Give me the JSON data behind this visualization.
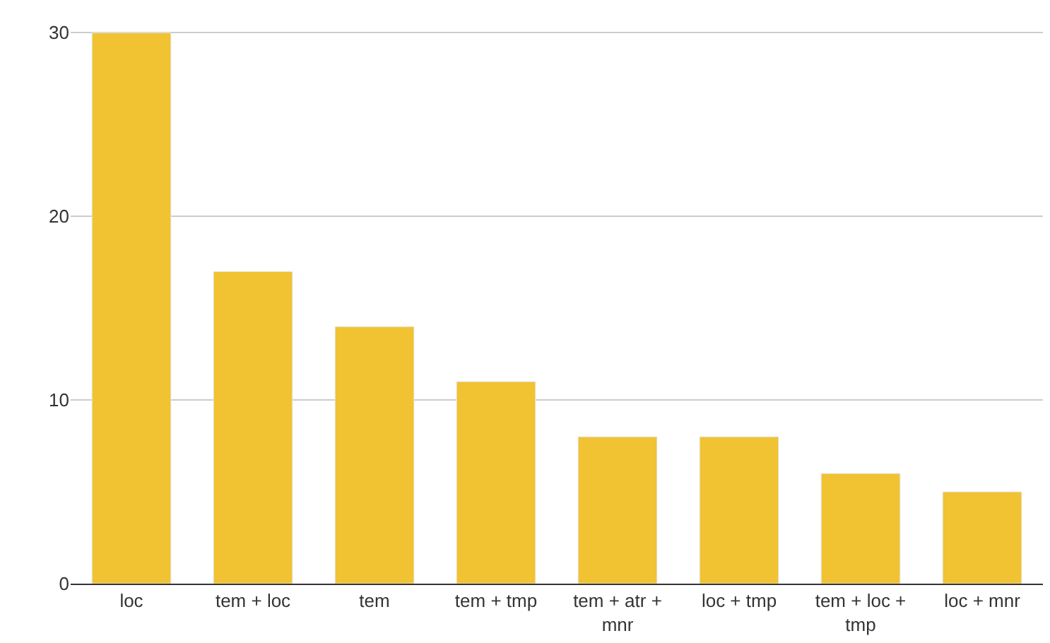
{
  "chart_data": {
    "type": "bar",
    "categories": [
      "loc",
      "tem + loc",
      "tem",
      "tem + tmp",
      "tem + atr + mnr",
      "loc + tmp",
      "tem + loc + tmp",
      "loc + mnr"
    ],
    "values": [
      30,
      17,
      14,
      11,
      8,
      8,
      6,
      5
    ],
    "color": "#f1c232",
    "ylim": [
      0,
      30
    ],
    "yticks": [
      0,
      10,
      20,
      30
    ],
    "grid": "y"
  }
}
